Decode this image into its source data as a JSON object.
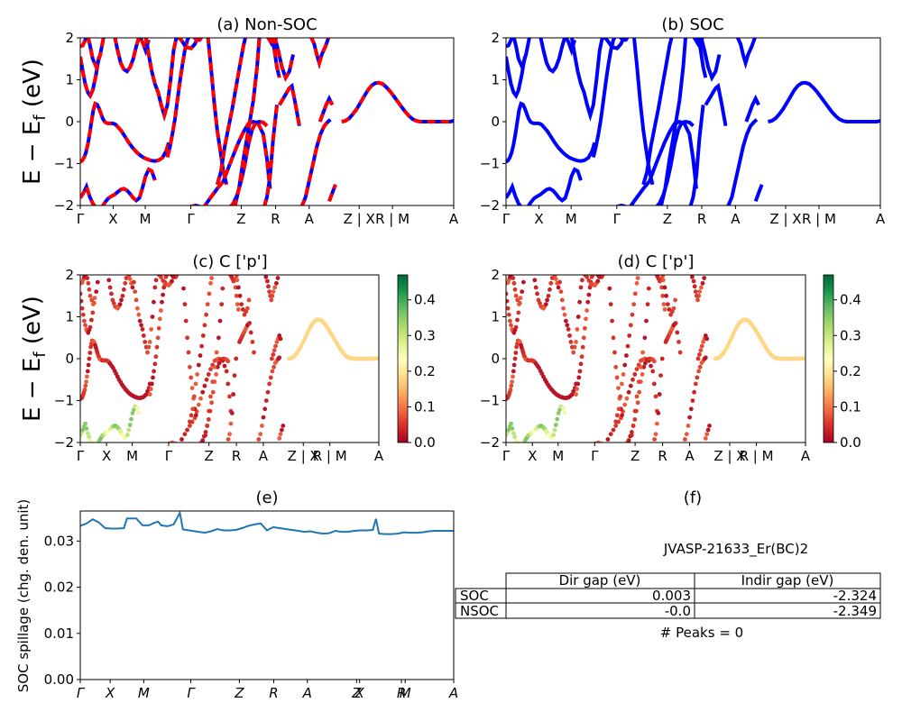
{
  "chart_data": [
    {
      "type": "line",
      "title": "(a) Non-SOC",
      "ylabel": "E − E_f (eV)",
      "ylim": [
        -2,
        2
      ],
      "yticks": [
        "−2",
        "−1",
        "0",
        "1",
        "2"
      ],
      "kpath_labels": [
        "Γ",
        "X",
        "M",
        "Γ",
        "Z",
        "R",
        "A",
        "Z | X",
        "R | M",
        "A"
      ],
      "colors": {
        "band": "#0000ff",
        "overlay": "#ff0000"
      },
      "series": [
        {
          "x": [
            0.0,
            0.03,
            0.06,
            0.09,
            0.12,
            0.15,
            0.18,
            0.21,
            0.24,
            0.27,
            0.3,
            0.33,
            0.36,
            0.39,
            0.42,
            0.45,
            0.48,
            0.51,
            0.54,
            0.57,
            0.6
          ],
          "y": [
            -0.96,
            -0.93,
            -0.86,
            -0.74,
            -0.55,
            -0.3,
            0.0,
            0.28,
            0.43,
            0.41,
            0.32,
            0.2,
            0.08,
            0.0,
            -0.03,
            -0.04,
            -0.04,
            -0.04,
            -0.05,
            -0.07,
            -0.12
          ]
        },
        {
          "x": [
            0.6,
            0.66,
            0.72,
            0.78,
            0.84,
            0.9,
            0.96,
            1.02,
            1.08,
            1.14,
            1.2,
            1.26,
            1.32,
            1.38,
            1.42
          ],
          "y": [
            -0.12,
            -0.22,
            -0.36,
            -0.5,
            -0.62,
            -0.72,
            -0.8,
            -0.86,
            -0.9,
            -0.93,
            -0.94,
            -0.92,
            -0.86,
            -0.7,
            -0.5
          ]
        },
        {
          "x": [
            0.0,
            0.05,
            0.1,
            0.15,
            0.2,
            0.25,
            0.3,
            0.35,
            0.4,
            0.45,
            0.5,
            0.55,
            0.6,
            0.65,
            0.7,
            0.75,
            0.8,
            0.85,
            0.9,
            0.95,
            1.0,
            1.05,
            1.1,
            1.15,
            1.2
          ],
          "y": [
            -1.82,
            -1.7,
            -1.55,
            -1.78,
            -1.95,
            -2.05,
            -2.08,
            -2.03,
            -1.92,
            -1.83,
            -1.78,
            -1.74,
            -1.68,
            -1.62,
            -1.6,
            -1.64,
            -1.72,
            -1.82,
            -1.88,
            -1.82,
            -1.58,
            -1.3,
            -1.14,
            -1.18,
            -1.4
          ]
        },
        {
          "x": [
            0.0,
            0.04,
            0.08,
            0.12,
            0.16,
            0.2,
            0.25,
            0.3
          ],
          "y": [
            1.55,
            1.2,
            0.9,
            0.7,
            0.62,
            0.75,
            1.1,
            1.55
          ]
        },
        {
          "x": [
            0.0,
            0.04,
            0.08,
            0.12,
            0.16,
            0.2,
            0.26,
            0.32,
            0.38
          ],
          "y": [
            1.8,
            1.82,
            1.95,
            2.05,
            1.8,
            1.5,
            1.3,
            1.6,
            2.05
          ]
        },
        {
          "x": [
            0.55,
            0.6,
            0.65,
            0.7,
            0.75,
            0.8,
            0.85,
            0.9,
            0.95,
            1.0,
            1.05,
            1.1
          ],
          "y": [
            2.05,
            1.7,
            1.4,
            1.25,
            1.2,
            1.3,
            1.5,
            1.8,
            2.05,
            1.9,
            1.7,
            1.95
          ]
        },
        {
          "x": [
            1.05,
            1.1,
            1.15,
            1.2,
            1.25,
            1.3,
            1.35,
            1.4,
            1.45,
            1.5,
            1.55
          ],
          "y": [
            2.05,
            1.6,
            1.2,
            0.9,
            0.7,
            0.4,
            0.15,
            0.4,
            1.0,
            1.7,
            2.05
          ]
        },
        {
          "x": [
            1.4,
            1.44,
            1.48,
            1.52,
            1.56,
            1.6,
            1.64,
            1.68,
            1.72,
            1.76,
            1.8,
            1.84,
            1.88,
            1.92,
            1.96
          ],
          "y": [
            -0.85,
            -0.6,
            -0.3,
            0.05,
            0.5,
            0.95,
            1.35,
            1.7,
            1.95,
            2.05,
            2.05,
            2.0,
            1.95,
            1.95,
            2.05
          ]
        },
        {
          "x": [
            1.55,
            1.62,
            1.7,
            1.78,
            1.84,
            1.9
          ],
          "y": [
            2.05,
            1.95,
            1.78,
            1.75,
            1.85,
            2.05
          ]
        },
        {
          "x": [
            1.72,
            1.85,
            1.98,
            2.1,
            2.2,
            2.3,
            2.38,
            2.46,
            2.54,
            2.62,
            2.7,
            2.78,
            2.86,
            2.94,
            3.0,
            3.05
          ],
          "y": [
            -2.05,
            -2.0,
            -2.05,
            -1.8,
            -1.6,
            -1.42,
            -1.1,
            -0.8,
            -0.5,
            -0.25,
            -0.05,
            0.0,
            -0.05,
            -0.3,
            -0.9,
            -1.6
          ]
        },
        {
          "x": [
            2.05,
            2.1,
            2.15,
            2.2,
            2.25,
            2.3,
            2.35
          ],
          "y": [
            2.05,
            1.3,
            0.5,
            -0.2,
            -0.7,
            -1.2,
            -1.5
          ]
        },
        {
          "x": [
            2.2,
            2.26,
            2.32,
            2.38,
            2.44,
            2.5,
            2.56,
            2.62,
            2.66
          ],
          "y": [
            -1.5,
            -1.2,
            -0.6,
            -0.15,
            0.3,
            0.8,
            1.3,
            1.8,
            2.05
          ]
        },
        {
          "x": [
            2.4,
            2.46,
            2.52,
            2.58,
            2.64,
            2.7,
            2.76,
            2.82,
            2.88,
            2.94,
            3.0
          ],
          "y": [
            -2.05,
            -1.95,
            -1.75,
            -1.45,
            -1.05,
            -0.55,
            -0.2,
            -0.02,
            0.0,
            -0.02,
            -0.1
          ]
        },
        {
          "x": [
            2.48,
            2.55,
            2.62,
            2.7,
            2.78,
            2.84,
            2.88
          ],
          "y": [
            -2.05,
            -1.6,
            -0.9,
            -0.2,
            0.5,
            1.3,
            2.05
          ]
        },
        {
          "x": [
            2.95,
            3.0,
            3.05,
            3.1,
            3.16
          ],
          "y": [
            -2.05,
            -1.8,
            -1.3,
            -0.4,
            0.4
          ]
        },
        {
          "x": [
            3.0,
            3.04,
            3.08,
            3.12,
            3.16
          ],
          "y": [
            2.05,
            1.95,
            1.85,
            1.9,
            2.05
          ]
        },
        {
          "x": [
            3.08,
            3.12,
            3.16,
            3.2
          ],
          "y": [
            2.05,
            1.7,
            1.3,
            1.05
          ]
        },
        {
          "x": [
            3.12,
            3.18,
            3.24,
            3.3,
            3.36,
            3.42
          ],
          "y": [
            2.05,
            1.7,
            1.3,
            1.05,
            1.2,
            1.6
          ]
        },
        {
          "x": [
            3.2,
            3.24,
            3.28,
            3.32,
            3.36,
            3.4,
            3.46,
            3.52
          ],
          "y": [
            0.4,
            0.5,
            0.6,
            0.7,
            0.8,
            0.85,
            0.4,
            -0.1
          ]
        },
        {
          "x": [
            3.55,
            3.62,
            3.68,
            3.74,
            3.8,
            3.86,
            3.92,
            3.98,
            4.02
          ],
          "y": [
            -2.05,
            -1.8,
            -1.4,
            -1.0,
            -0.6,
            -0.3,
            -0.1,
            0.0,
            0.05
          ]
        },
        {
          "x": [
            3.7,
            3.76,
            3.8,
            3.84,
            3.88,
            3.94,
            4.0
          ],
          "y": [
            2.05,
            1.85,
            1.6,
            1.4,
            1.6,
            1.8,
            2.05
          ]
        },
        {
          "x": [
            3.85,
            3.9,
            3.95,
            4.0,
            4.05
          ],
          "y": [
            0.0,
            0.2,
            0.4,
            0.55,
            0.4
          ]
        },
        {
          "x": [
            4.0,
            4.05,
            4.1
          ],
          "y": [
            -1.9,
            -1.7,
            -1.5
          ]
        },
        {
          "x": [
            4.2,
            4.26,
            4.32,
            4.38,
            4.44,
            4.5,
            4.56,
            4.62,
            4.68,
            4.74,
            4.8,
            4.86,
            4.92,
            4.98,
            5.04,
            5.1,
            5.16,
            5.22,
            5.28,
            5.34,
            5.4,
            5.46,
            5.52,
            5.58,
            5.64,
            5.7,
            5.76,
            5.82,
            5.88,
            5.94,
            6.0
          ],
          "y": [
            0.0,
            0.02,
            0.08,
            0.18,
            0.3,
            0.45,
            0.6,
            0.75,
            0.86,
            0.92,
            0.93,
            0.9,
            0.82,
            0.72,
            0.6,
            0.48,
            0.36,
            0.24,
            0.14,
            0.06,
            0.02,
            0.0,
            0.0,
            0.0,
            0.0,
            0.0,
            0.0,
            0.0,
            0.0,
            0.0,
            0.02
          ]
        }
      ]
    },
    {
      "type": "line",
      "title": "(b) SOC",
      "ylim": [
        -2,
        2
      ],
      "yticks": [
        "−2",
        "−1",
        "0",
        "1",
        "2"
      ],
      "kpath_labels": [
        "Γ",
        "X",
        "M",
        "Γ",
        "Z",
        "R",
        "A",
        "Z | X",
        "R | M",
        "A"
      ],
      "colors": {
        "band": "#0000ff"
      }
    },
    {
      "type": "scatter",
      "title": "(c)  C ['p']",
      "ylabel": "E − E_f (eV)",
      "ylim": [
        -2,
        2
      ],
      "yticks": [
        "−2",
        "−1",
        "0",
        "1",
        "2"
      ],
      "kpath_labels": [
        "Γ",
        "X",
        "M",
        "Γ",
        "Z",
        "R",
        "A",
        "Z | X",
        "R | M",
        "A"
      ],
      "colorbar": {
        "label_ticks": [
          "0.0",
          "0.1",
          "0.2",
          "0.3",
          "0.4"
        ],
        "range": [
          0,
          0.47
        ],
        "colormap": "RdYlGn"
      },
      "point_weights": {
        "band_default": 0.08,
        "low_bands": 0.32,
        "top_right": 0.18
      }
    },
    {
      "type": "scatter",
      "title": "(d) C ['p']",
      "ylim": [
        -2,
        2
      ],
      "yticks": [
        "−2",
        "−1",
        "0",
        "1",
        "2"
      ],
      "kpath_labels": [
        "Γ",
        "X",
        "M",
        "Γ",
        "Z",
        "R",
        "A",
        "Z | X",
        "R | M",
        "A"
      ],
      "colorbar": {
        "label_ticks": [
          "0.0",
          "0.1",
          "0.2",
          "0.3",
          "0.4"
        ],
        "range": [
          0,
          0.47
        ],
        "colormap": "RdYlGn"
      }
    },
    {
      "type": "line",
      "title": "(e)",
      "ylabel": "SOC spillage (chg. den. unit)",
      "ylim": [
        0,
        0.0365
      ],
      "yticks": [
        "0.00",
        "0.01",
        "0.02",
        "0.03"
      ],
      "kpath_labels": [
        "Γ",
        "X",
        "M",
        "Γ",
        "Z",
        "R",
        "A",
        "Z",
        "X",
        "R",
        "M",
        "A"
      ],
      "colors": {
        "line": "#1f77b4"
      },
      "series": [
        {
          "x": [
            0.0,
            0.1,
            0.2,
            0.3,
            0.4,
            0.5,
            0.6,
            0.7,
            0.75,
            0.8,
            0.9,
            1.0,
            1.1,
            1.2,
            1.25,
            1.3,
            1.4,
            1.5,
            1.6,
            1.65,
            1.7,
            1.8,
            1.9,
            2.0,
            2.1,
            2.2,
            2.3,
            2.4,
            2.5,
            2.6,
            2.7,
            2.8,
            2.9,
            3.0,
            3.1,
            3.2,
            3.3,
            3.35,
            3.4,
            3.5,
            3.6,
            3.7,
            3.8,
            3.9,
            4.0,
            4.1,
            4.2,
            4.3,
            4.4,
            4.5,
            4.6,
            4.7,
            4.75,
            4.8,
            4.9,
            5.0,
            5.1,
            5.2,
            5.3,
            5.4,
            5.5,
            5.6,
            5.7,
            5.8,
            5.9,
            6.0
          ],
          "y": [
            0.0333,
            0.0338,
            0.0347,
            0.034,
            0.0328,
            0.0327,
            0.0327,
            0.0328,
            0.0349,
            0.0349,
            0.0349,
            0.0334,
            0.0334,
            0.034,
            0.0342,
            0.0334,
            0.0332,
            0.0336,
            0.0361,
            0.0325,
            0.0324,
            0.0322,
            0.032,
            0.0318,
            0.0321,
            0.0326,
            0.0323,
            0.0323,
            0.0324,
            0.0328,
            0.0333,
            0.0336,
            0.0338,
            0.0323,
            0.033,
            0.0328,
            0.0326,
            0.0325,
            0.0324,
            0.0322,
            0.032,
            0.0321,
            0.0318,
            0.0316,
            0.0317,
            0.0322,
            0.032,
            0.032,
            0.0322,
            0.0323,
            0.0323,
            0.0324,
            0.0348,
            0.0316,
            0.0315,
            0.0315,
            0.0316,
            0.0319,
            0.0318,
            0.0318,
            0.0319,
            0.0321,
            0.0322,
            0.0322,
            0.0322,
            0.0322
          ]
        }
      ]
    }
  ],
  "panel_f": {
    "title": "(f)",
    "jid": "JVASP-21633_Er(BC)2",
    "table": {
      "headers": [
        "",
        "Dir gap (eV)",
        "Indir gap (eV)"
      ],
      "rows": [
        [
          "SOC",
          "0.003",
          "-2.324"
        ],
        [
          "NSOC",
          "-0.0",
          "-2.349"
        ]
      ]
    },
    "peaks": "# Peaks = 0"
  }
}
